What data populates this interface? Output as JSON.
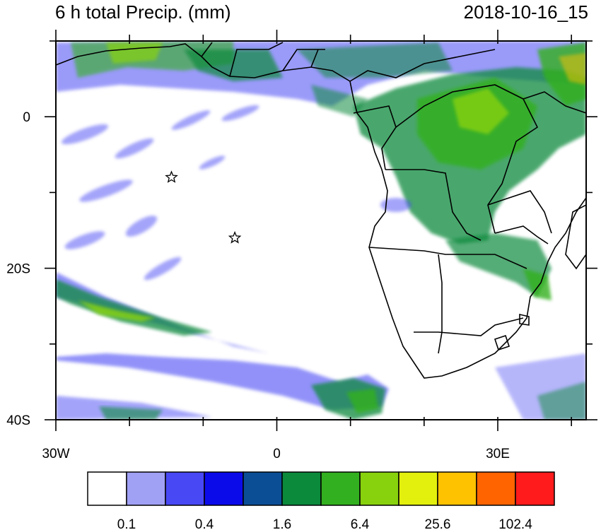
{
  "header": {
    "title": "6 h total Precip. (mm)",
    "datetime": "2018-10-16_15"
  },
  "map": {
    "lon_range": [
      -30,
      42
    ],
    "lat_range": [
      -40,
      10
    ],
    "x_ticks": [
      {
        "lon": -30,
        "label": "30W"
      },
      {
        "lon": 0,
        "label": "0"
      },
      {
        "lon": 30,
        "label": "30E"
      }
    ],
    "y_ticks": [
      {
        "lat": 0,
        "label": "0"
      },
      {
        "lat": -20,
        "label": "20S"
      },
      {
        "lat": -40,
        "label": "40S"
      }
    ],
    "markers": [
      {
        "name": "star",
        "lon": -14.3,
        "lat": -8.0
      },
      {
        "name": "star",
        "lon": -5.7,
        "lat": -16.0
      }
    ]
  },
  "colorbar": {
    "colors": [
      "#ffffff",
      "#a0a0f5",
      "#4848f5",
      "#0b0bea",
      "#0b4e96",
      "#0b8a3c",
      "#33b01f",
      "#88d20d",
      "#e3f00d",
      "#ffc200",
      "#ff6400",
      "#ff1b1b"
    ],
    "labels": [
      "0.1",
      "0.4",
      "1.6",
      "6.4",
      "25.6",
      "102.4"
    ]
  }
}
